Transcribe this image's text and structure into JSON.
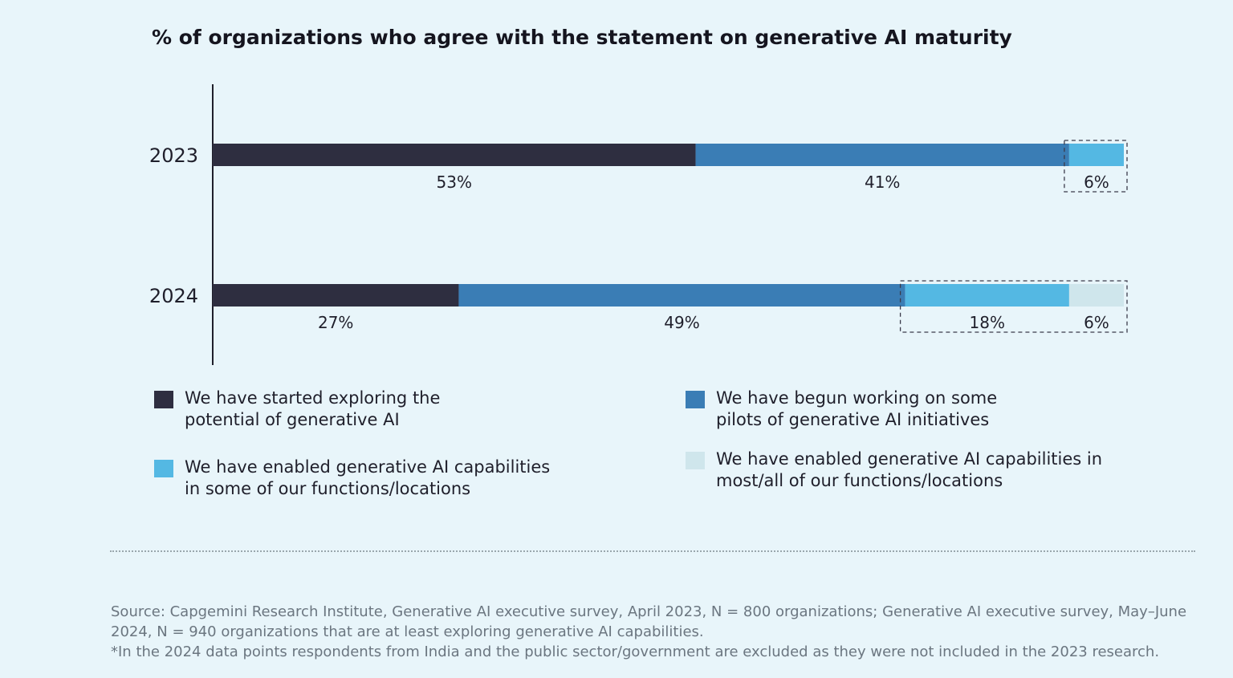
{
  "chart_data": {
    "type": "bar",
    "orientation": "horizontal",
    "stacked": true,
    "title": "% of organizations who agree with the statement on generative AI maturity",
    "categories": [
      "2023",
      "2024"
    ],
    "series": [
      {
        "name": "We have started exploring the potential of generative AI",
        "values": [
          53,
          27
        ],
        "color": "#2e2e40"
      },
      {
        "name": "We have begun working on some pilots of generative AI initiatives",
        "values": [
          41,
          49
        ],
        "color": "#3a7db5"
      },
      {
        "name": "We have enabled generative AI capabilities in some of our functions/locations",
        "values": [
          6,
          18
        ],
        "color": "#54b8e3"
      },
      {
        "name": "We have enabled generative AI capabilities in most/all of our functions/locations",
        "values": [
          0,
          6
        ],
        "color": "#cfe6ec"
      }
    ],
    "value_labels": [
      [
        "53%",
        "41%",
        "6%"
      ],
      [
        "27%",
        "49%",
        "18%",
        "6%"
      ]
    ],
    "highlight_boxes": "dashed boxes around the enabled-capabilities segments",
    "legend_position": "bottom",
    "xlim": [
      0,
      100
    ]
  },
  "legend": [
    {
      "line1": "We have started exploring the",
      "line2": "potential of generative AI",
      "color": "#2e2e40"
    },
    {
      "line1": "We have begun working on some",
      "line2": "pilots of generative AI initiatives",
      "color": "#3a7db5"
    },
    {
      "line1": "We have enabled generative AI capabilities",
      "line2": "in some of our functions/locations",
      "color": "#54b8e3"
    },
    {
      "line1": "We have enabled generative AI capabilities in",
      "line2": "most/all of our functions/locations",
      "color": "#cfe6ec"
    }
  ],
  "source": {
    "line1": "Source: Capgemini Research Institute, Generative AI executive survey, April 2023, N = 800 organizations; Generative AI executive survey, May–June",
    "line2": "2024, N = 940 organizations that are at least exploring generative AI capabilities.",
    "line3": "*In the 2024 data points respondents from India and the public sector/government are excluded as they were not included in the 2023 research."
  }
}
